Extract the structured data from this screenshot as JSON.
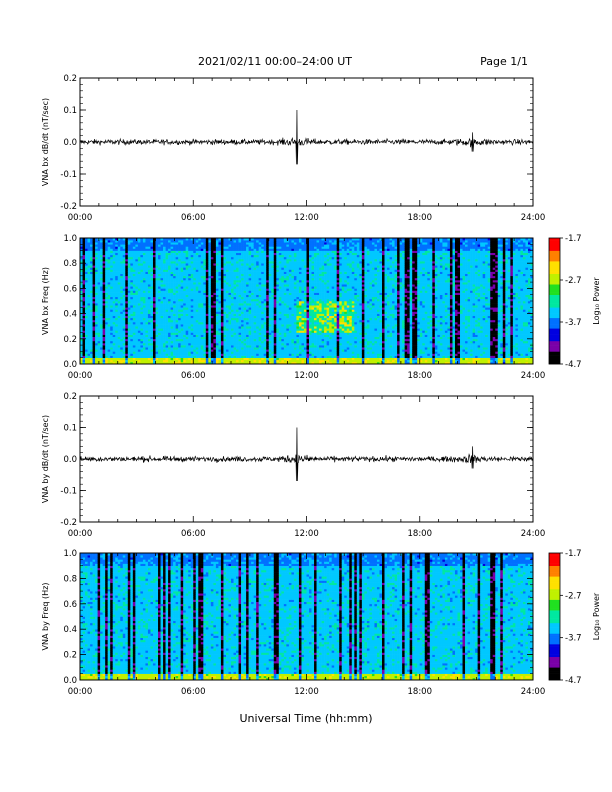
{
  "header": {
    "title": "2021/02/11  00:00–24:00 UT",
    "page": "Page 1/1"
  },
  "xaxis": {
    "title": "Universal Time (hh:mm)",
    "ticks": [
      "00:00",
      "06:00",
      "12:00",
      "18:00",
      "24:00"
    ],
    "range_hours": [
      0,
      24
    ]
  },
  "chart_data": [
    {
      "type": "line",
      "ylabel": "VNA bx dB/dt (nT/sec)",
      "ylim": [
        -0.2,
        0.2
      ],
      "yticks": [
        "0.2",
        "0.1",
        "0.0",
        "-0.1",
        "-0.2"
      ],
      "x_range_hours": [
        0,
        24
      ],
      "summary": {
        "baseline": 0.0,
        "typical_noise_amplitude": 0.01,
        "peaks": [
          {
            "time_hours": 11.5,
            "max": 0.1,
            "min": -0.07
          },
          {
            "time_hours": 20.8,
            "max": 0.03,
            "min": -0.03
          }
        ]
      }
    },
    {
      "type": "heatmap",
      "ylabel": "VNA bx Freq (Hz)",
      "ylim": [
        0.0,
        1.0
      ],
      "yticks": [
        "1.0",
        "0.8",
        "0.6",
        "0.4",
        "0.2",
        "0.0"
      ],
      "x_range_hours": [
        0,
        24
      ],
      "colorbar": {
        "label": "Log₁₀ Power",
        "ticks": [
          "-1.7",
          "-2.7",
          "-3.7",
          "-4.7"
        ],
        "range": [
          -4.7,
          -1.7
        ]
      },
      "features": [
        {
          "description": "enhanced power band near 0 Hz",
          "freq_hz": [
            0.0,
            0.05
          ],
          "time_hours": [
            0,
            24
          ]
        },
        {
          "description": "emission patch",
          "freq_hz": [
            0.25,
            0.5
          ],
          "time_hours": [
            11.5,
            14.5
          ]
        }
      ]
    },
    {
      "type": "line",
      "ylabel": "VNA by dB/dt (nT/sec)",
      "ylim": [
        -0.2,
        0.2
      ],
      "yticks": [
        "0.2",
        "0.1",
        "0.0",
        "-0.1",
        "-0.2"
      ],
      "x_range_hours": [
        0,
        24
      ],
      "summary": {
        "baseline": 0.0,
        "typical_noise_amplitude": 0.01,
        "peaks": [
          {
            "time_hours": 11.5,
            "max": 0.1,
            "min": -0.07
          },
          {
            "time_hours": 20.8,
            "max": 0.04,
            "min": -0.03
          }
        ]
      }
    },
    {
      "type": "heatmap",
      "ylabel": "VNA by Freq (Hz)",
      "ylim": [
        0.0,
        1.0
      ],
      "yticks": [
        "1.0",
        "0.8",
        "0.6",
        "0.4",
        "0.2",
        "0.0"
      ],
      "x_range_hours": [
        0,
        24
      ],
      "colorbar": {
        "label": "Log₁₀ Power",
        "ticks": [
          "-1.7",
          "-2.7",
          "-3.7",
          "-4.7"
        ],
        "range": [
          -4.7,
          -1.7
        ]
      },
      "features": [
        {
          "description": "enhanced power band near 0 Hz",
          "freq_hz": [
            0.0,
            0.05
          ],
          "time_hours": [
            0,
            24
          ]
        }
      ]
    }
  ],
  "colors": {
    "trace": "#000000",
    "colormap": [
      "#000000",
      "#7a00a8",
      "#0000e0",
      "#0070ff",
      "#00c8ff",
      "#00e8a0",
      "#20e020",
      "#c0f000",
      "#ffe000",
      "#ff8000",
      "#ff0000"
    ]
  }
}
